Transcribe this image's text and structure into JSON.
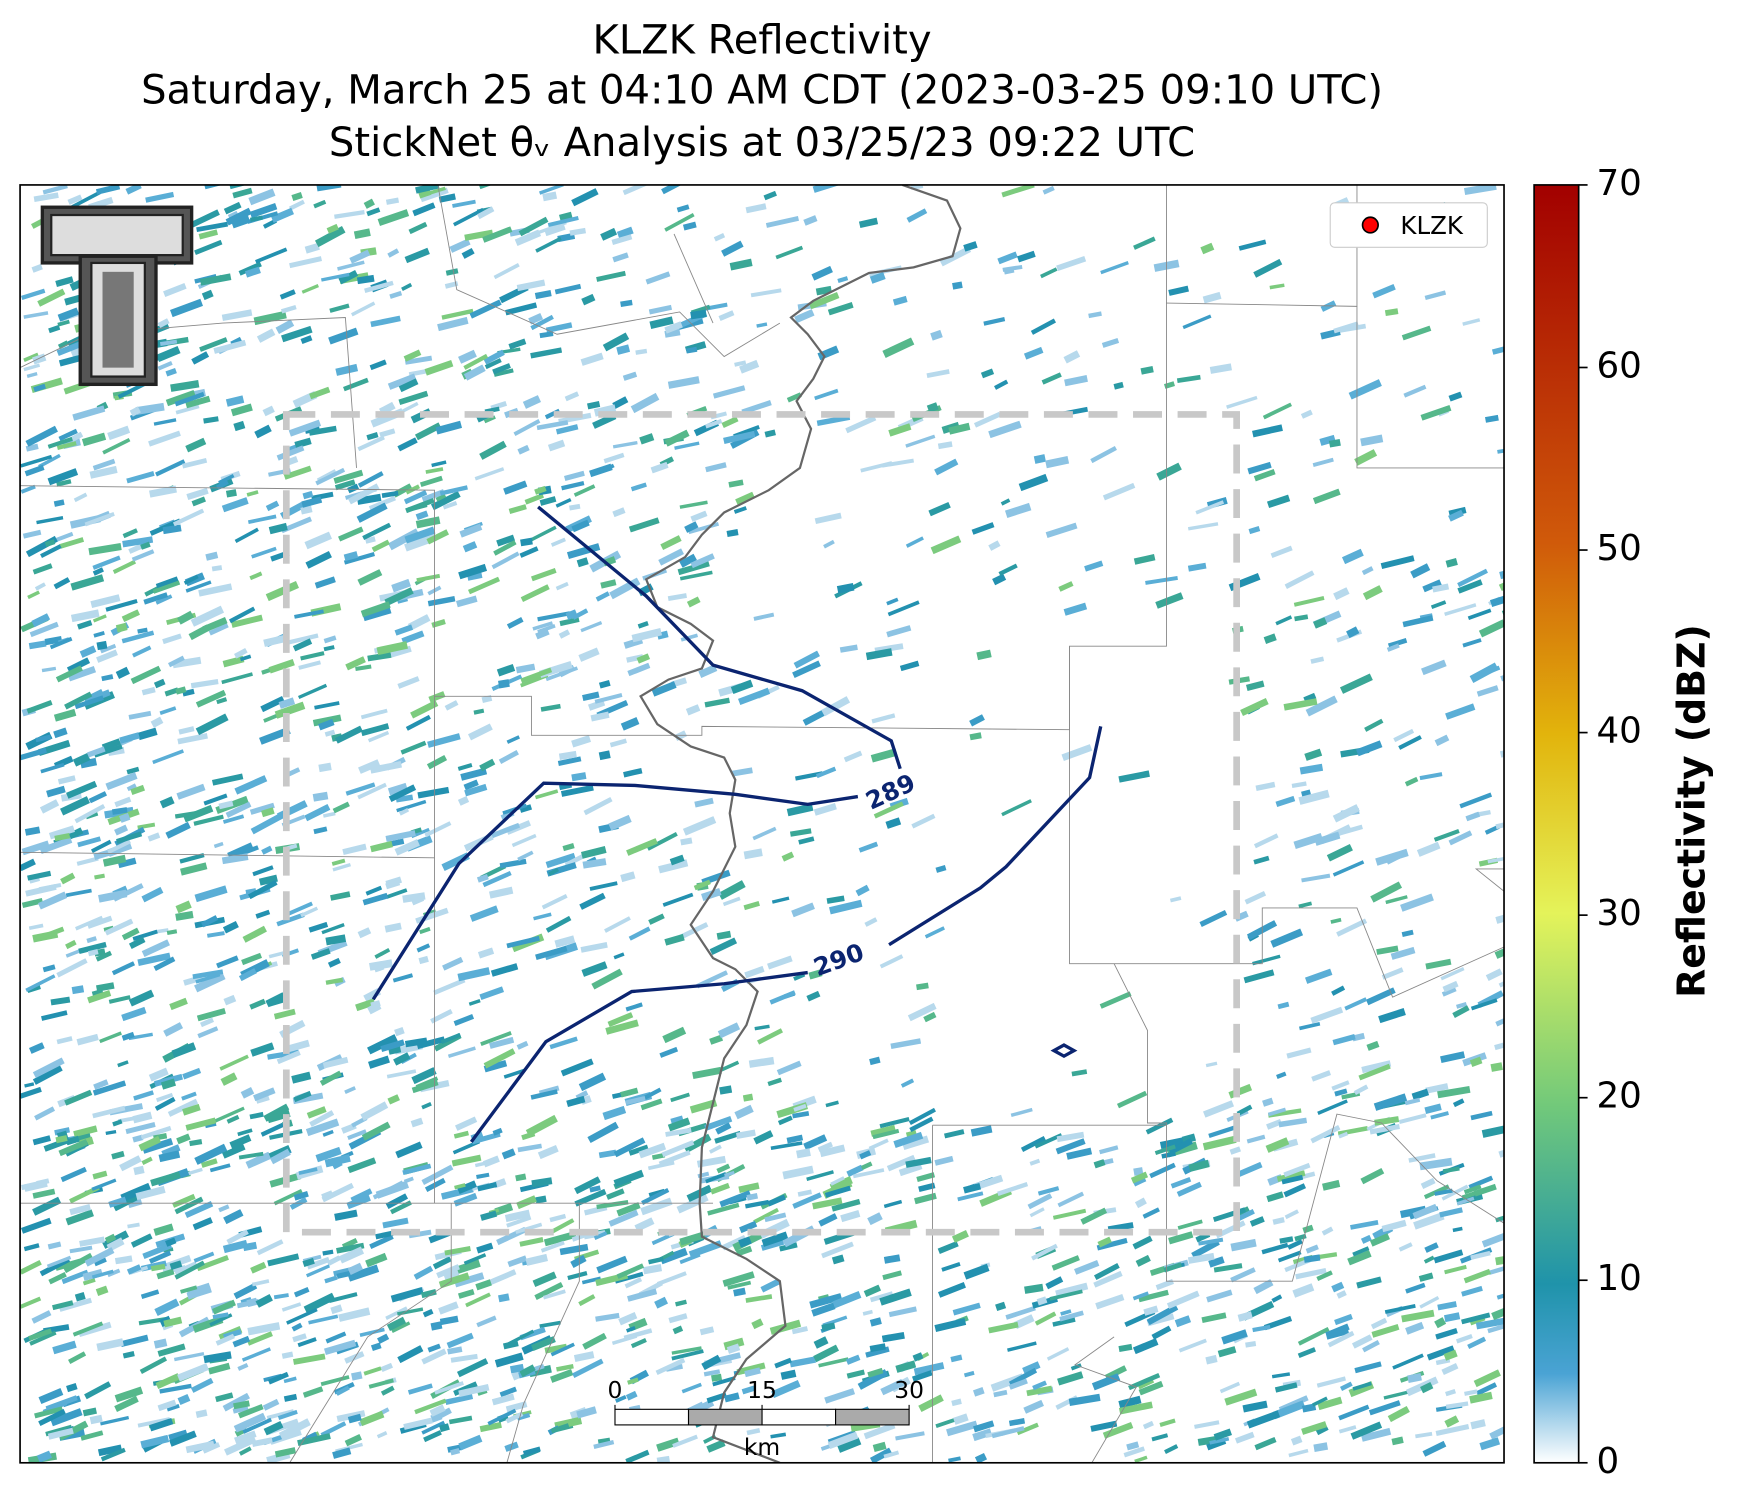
{
  "title": {
    "lines": [
      "KLZK Reflectivity",
      "Saturday, March 25 at 04:10 AM CDT (2023-03-25 09:10 UTC)",
      "StickNet θᵥ Analysis at 03/25/23 09:22 UTC"
    ]
  },
  "legend": {
    "label": "KLZK",
    "color": "#ff0000"
  },
  "contours": {
    "levels": [
      289,
      290
    ],
    "color": "#0b2470"
  },
  "colorbar": {
    "label": "Reflectivity (dBZ)",
    "lim": [
      0,
      70
    ],
    "ticks": [
      0,
      10,
      20,
      30,
      40,
      50,
      60,
      70
    ]
  },
  "scale_bar": {
    "ticks": [
      0,
      15,
      30
    ],
    "unit": "km"
  }
}
